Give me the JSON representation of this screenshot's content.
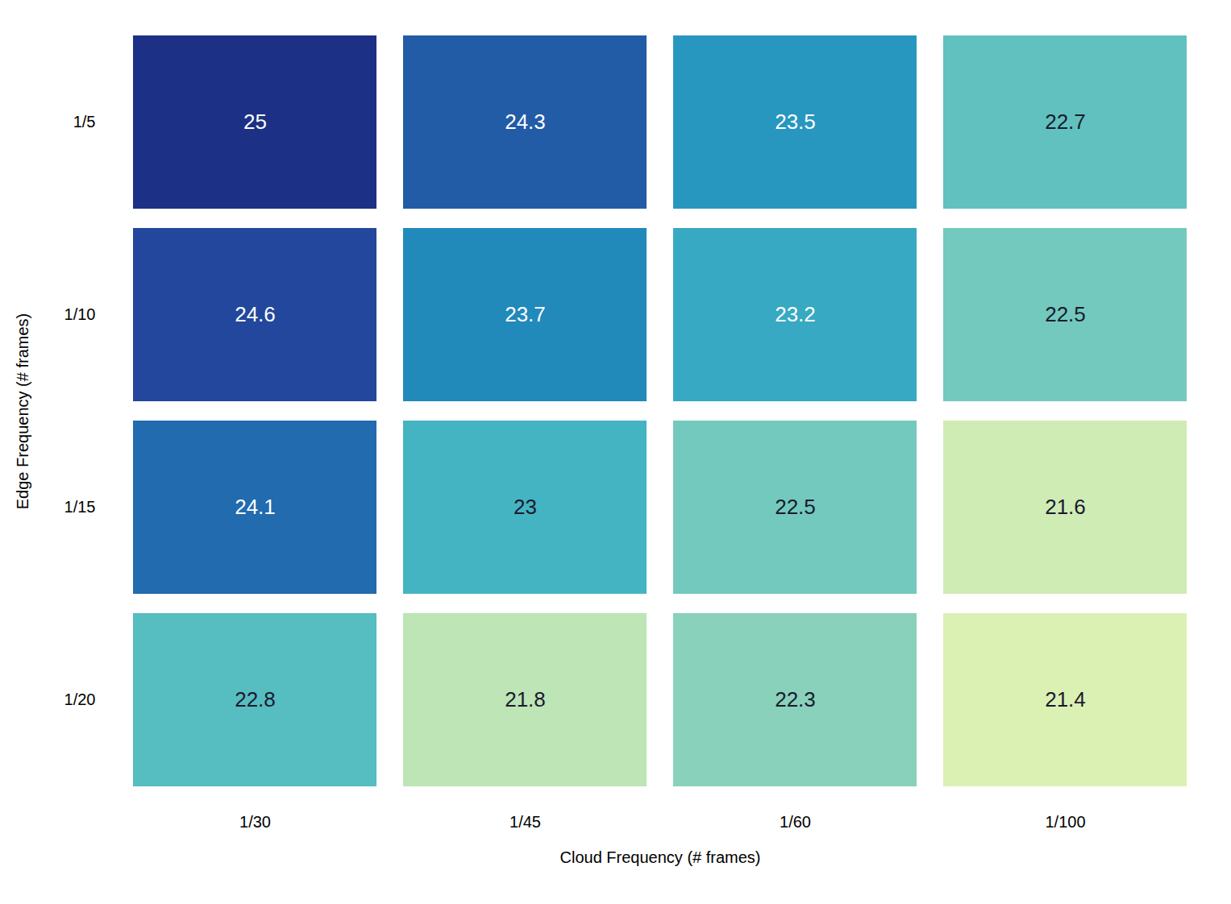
{
  "chart_data": {
    "type": "heatmap",
    "x": [
      "1/30",
      "1/45",
      "1/60",
      "1/100"
    ],
    "y": [
      "1/5",
      "1/10",
      "1/15",
      "1/20"
    ],
    "values": [
      [
        25.0,
        24.3,
        23.5,
        22.7
      ],
      [
        24.6,
        23.7,
        23.2,
        22.5
      ],
      [
        24.1,
        23.0,
        22.5,
        21.6
      ],
      [
        22.8,
        21.8,
        22.3,
        21.4
      ]
    ],
    "xlabel": "Cloud Frequency (# frames)",
    "ylabel": "Edge Frequency (# frames)",
    "color": "YlGnBu",
    "color_range": [
      20.5,
      25.5
    ],
    "data_labels": true
  }
}
